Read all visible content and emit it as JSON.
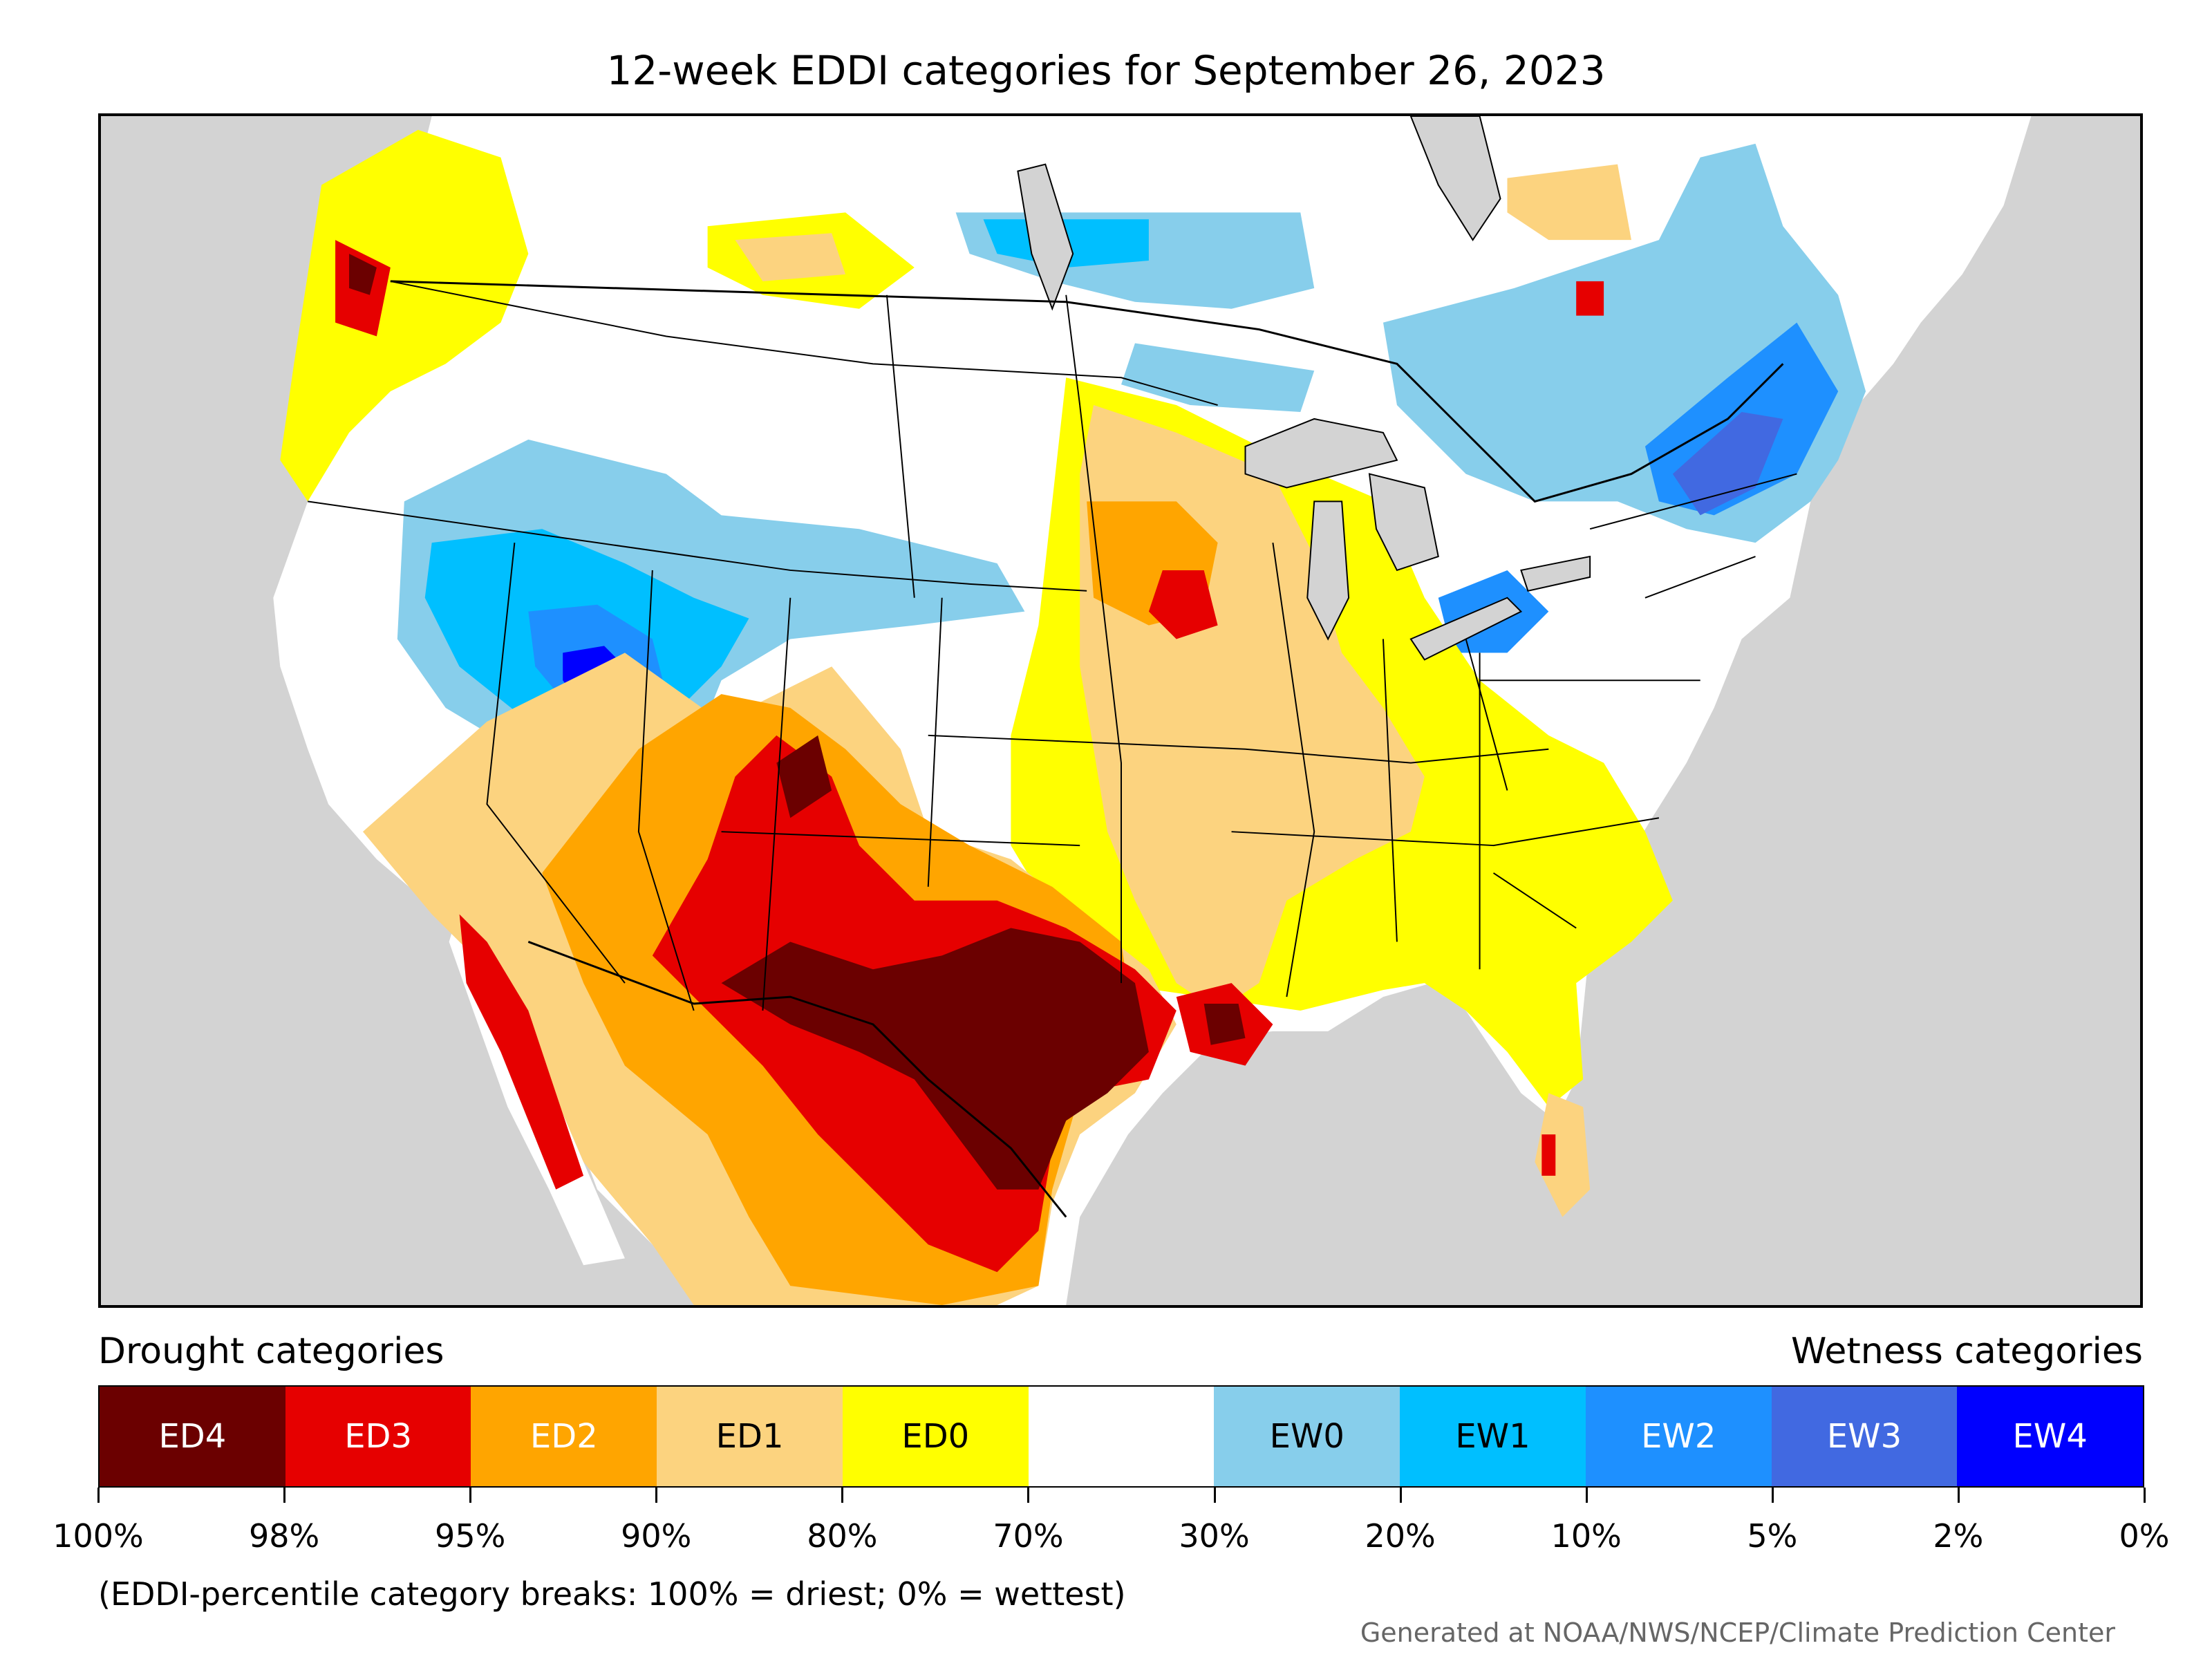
{
  "title": "12-week EDDI categories for September 26, 2023",
  "map": {
    "background_color": "#d3d3d3",
    "border_color": "#000000"
  },
  "legend": {
    "drought_title": "Drought categories",
    "wetness_title": "Wetness categories",
    "categories": [
      {
        "label": "ED4",
        "color": "#6b0000",
        "text_color": "#ffffff"
      },
      {
        "label": "ED3",
        "color": "#e60000",
        "text_color": "#ffffff"
      },
      {
        "label": "ED2",
        "color": "#ffa500",
        "text_color": "#ffffff"
      },
      {
        "label": "ED1",
        "color": "#fcd37f",
        "text_color": "#000000"
      },
      {
        "label": "ED0",
        "color": "#ffff00",
        "text_color": "#000000"
      },
      {
        "label": "",
        "color": "#ffffff",
        "text_color": "#000000"
      },
      {
        "label": "EW0",
        "color": "#87ceeb",
        "text_color": "#000000"
      },
      {
        "label": "EW1",
        "color": "#00bfff",
        "text_color": "#000000"
      },
      {
        "label": "EW2",
        "color": "#1e90ff",
        "text_color": "#ffffff"
      },
      {
        "label": "EW3",
        "color": "#4169e1",
        "text_color": "#ffffff"
      },
      {
        "label": "EW4",
        "color": "#0000ff",
        "text_color": "#ffffff"
      }
    ],
    "tick_labels": [
      "100%",
      "98%",
      "95%",
      "90%",
      "80%",
      "70%",
      "30%",
      "20%",
      "10%",
      "5%",
      "2%",
      "0%"
    ],
    "note": "(EDDI-percentile category breaks: 100% = driest; 0% = wettest)"
  },
  "credit": "Generated at NOAA/NWS/NCEP/Climate Prediction Center"
}
